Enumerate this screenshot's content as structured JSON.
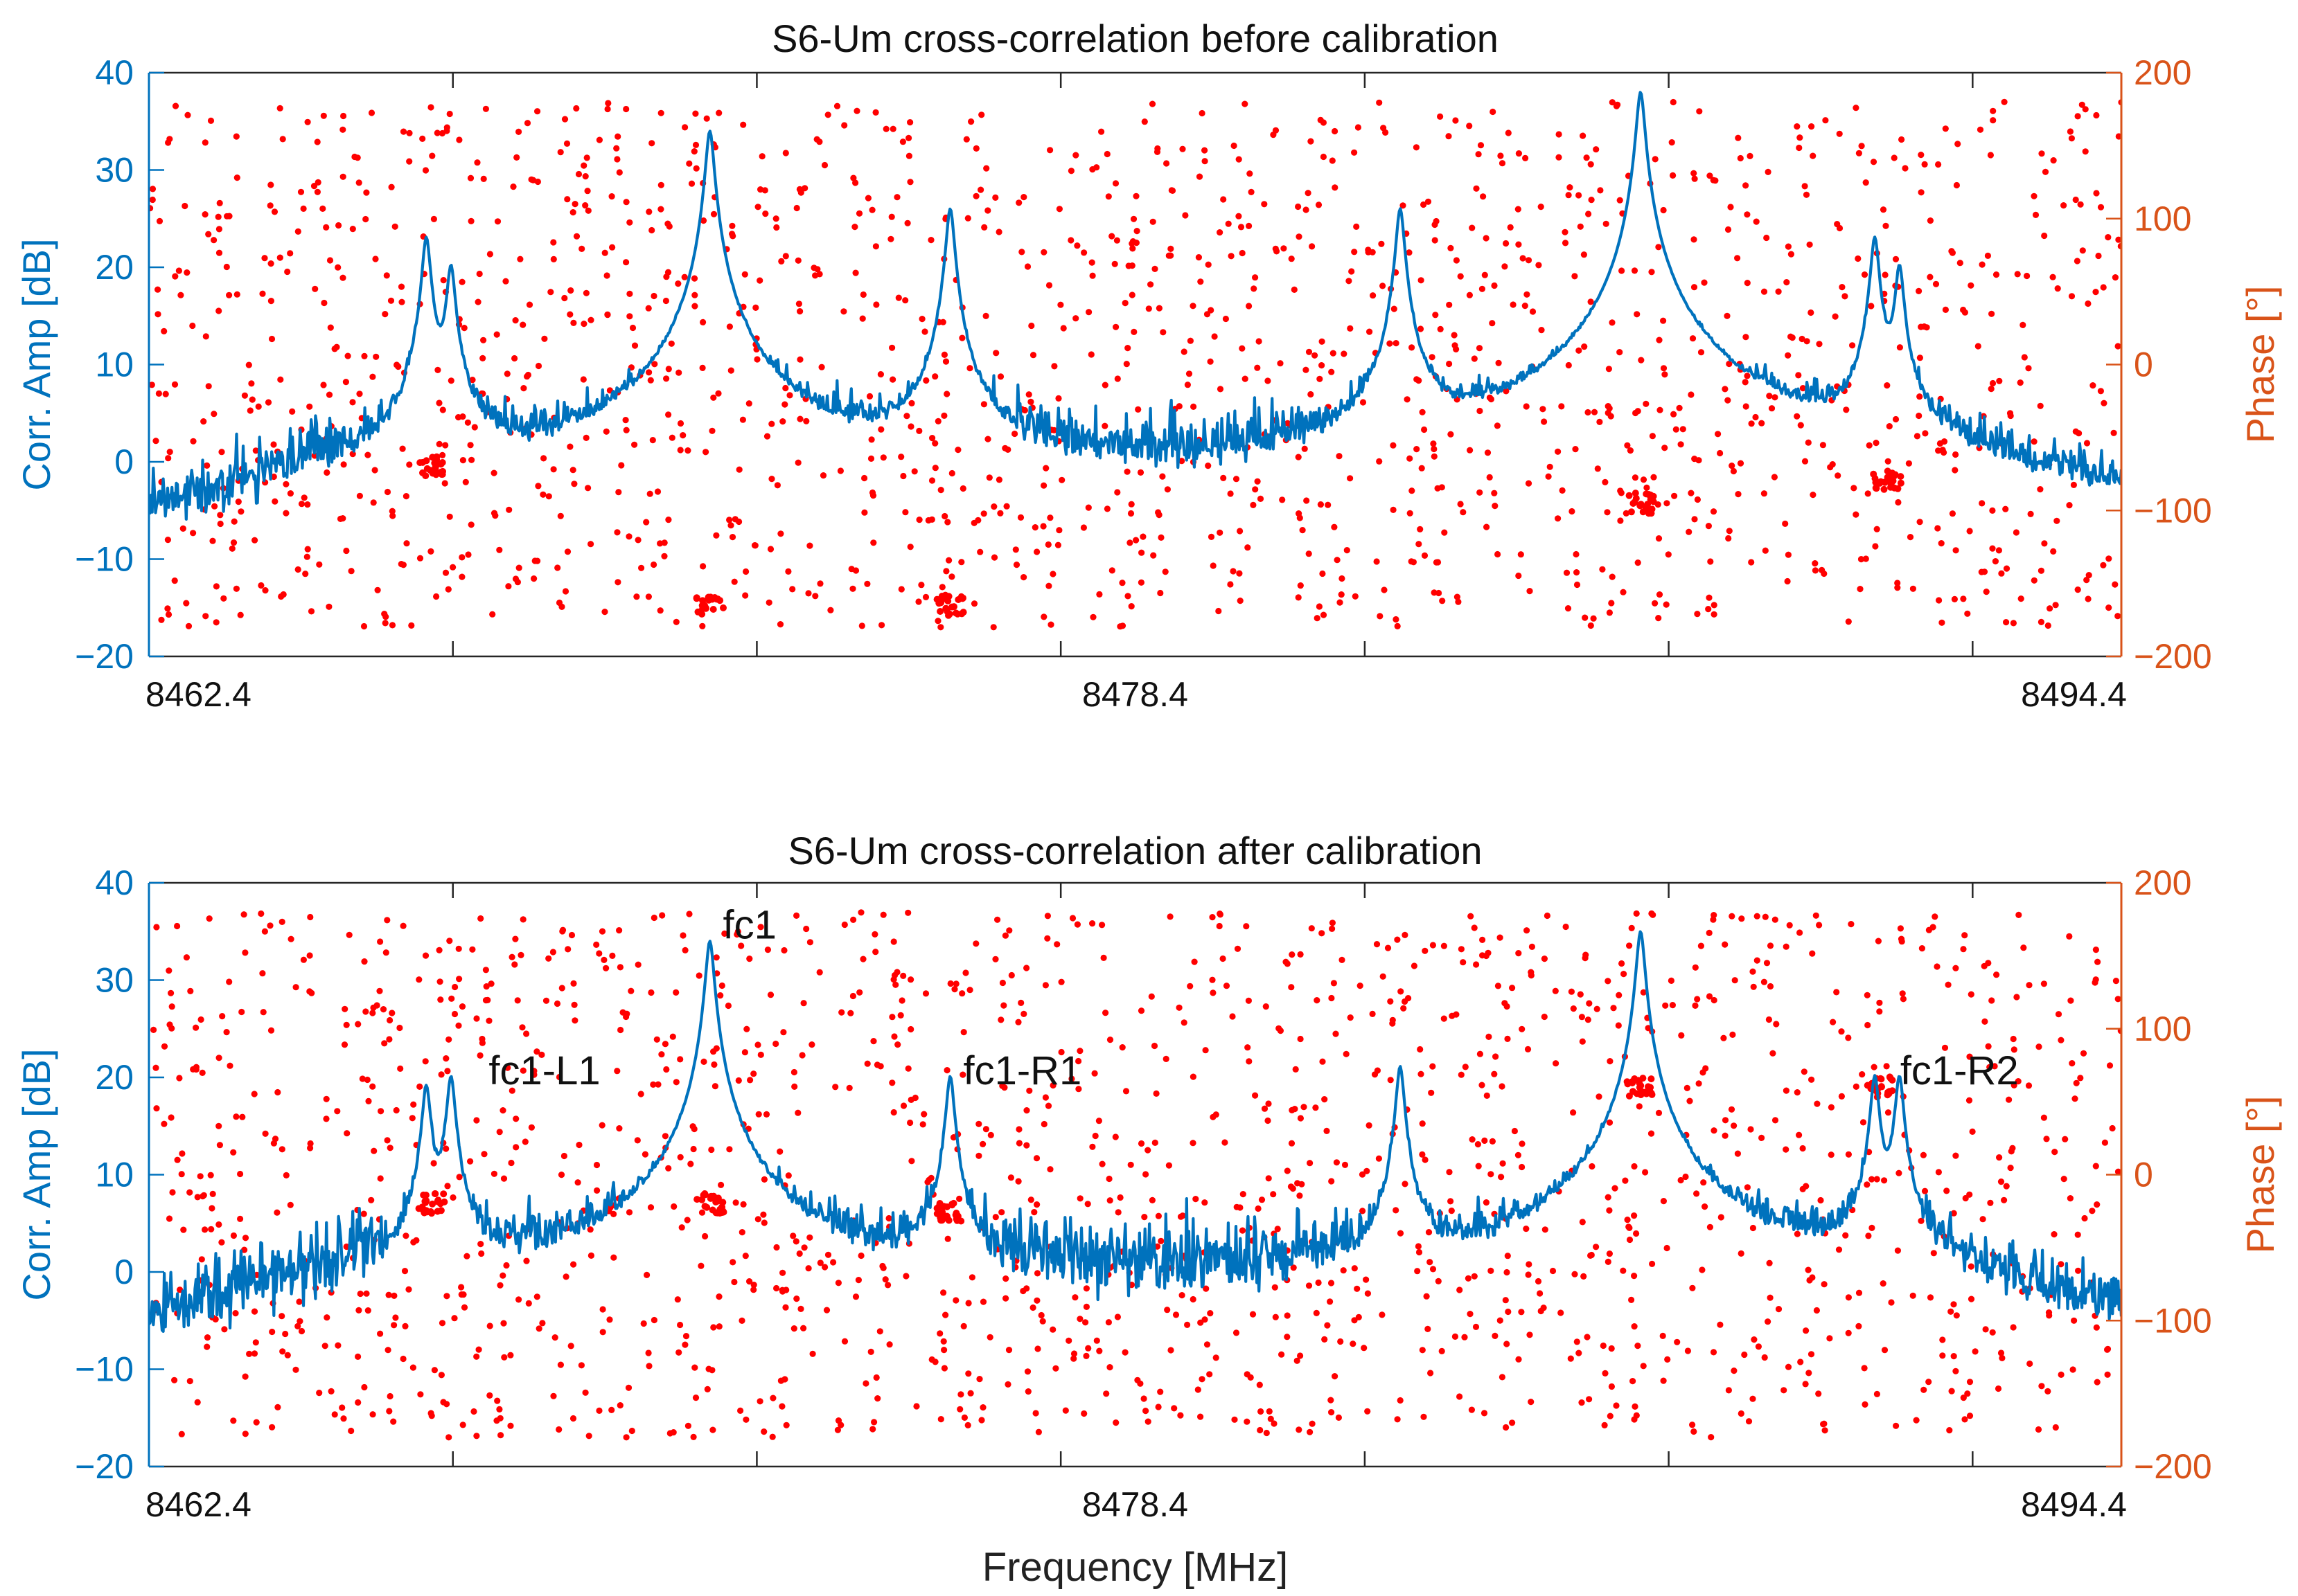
{
  "chart_data": [
    {
      "type": "line",
      "title": "S6-Um cross-correlation before calibration",
      "ylabel": "Corr. Amp [dB]",
      "y2label": "Phase [°]",
      "xlabel": "",
      "x_tick_labels": [
        "8462.4",
        "8478.4",
        "8494.4"
      ],
      "x_range": [
        8462.4,
        8494.4
      ],
      "ylim": [
        -20,
        40
      ],
      "y_ticks": [
        40,
        30,
        20,
        10,
        0,
        -10,
        -20
      ],
      "y2lim": [
        -200,
        200
      ],
      "y2_ticks": [
        200,
        100,
        0,
        -100,
        -200
      ],
      "colors": {
        "amplitude": "#0072BD",
        "phase": "#FF0000",
        "right_axis": "#D95319"
      },
      "series": [
        {
          "name": "Corr. Amp",
          "axis": "left",
          "baseline_db": -1,
          "noise_db": 6,
          "peaks": [
            {
              "freq": 8466.9,
              "db": 23
            },
            {
              "freq": 8467.3,
              "db": 20
            },
            {
              "freq": 8471.5,
              "db": 34
            },
            {
              "freq": 8475.4,
              "db": 26
            },
            {
              "freq": 8482.7,
              "db": 26
            },
            {
              "freq": 8486.6,
              "db": 38
            },
            {
              "freq": 8490.4,
              "db": 23
            },
            {
              "freq": 8490.8,
              "db": 20
            }
          ]
        },
        {
          "name": "Phase",
          "axis": "right",
          "type": "scatter",
          "clusters": [
            {
              "freq": 8467.0,
              "deg": -70
            },
            {
              "freq": 8471.5,
              "deg": -165
            },
            {
              "freq": 8475.4,
              "deg": -165
            },
            {
              "freq": 8486.6,
              "deg": -95
            },
            {
              "freq": 8490.6,
              "deg": -80
            }
          ]
        }
      ],
      "annotations": []
    },
    {
      "type": "line",
      "title": "S6-Um cross-correlation after calibration",
      "ylabel": "Corr. Amp [dB]",
      "y2label": "Phase [°]",
      "xlabel": "Frequency [MHz]",
      "x_tick_labels": [
        "8462.4",
        "8478.4",
        "8494.4"
      ],
      "x_range": [
        8462.4,
        8494.4
      ],
      "ylim": [
        -20,
        40
      ],
      "y_ticks": [
        40,
        30,
        20,
        10,
        0,
        -10,
        -20
      ],
      "y2lim": [
        -200,
        200
      ],
      "y2_ticks": [
        200,
        100,
        0,
        -100,
        -200
      ],
      "colors": {
        "amplitude": "#0072BD",
        "phase": "#FF0000",
        "right_axis": "#D95319"
      },
      "series": [
        {
          "name": "Corr. Amp",
          "axis": "left",
          "baseline_db": 0,
          "noise_db": 6,
          "peaks": [
            {
              "freq": 8466.9,
              "db": 19
            },
            {
              "freq": 8467.3,
              "db": 20
            },
            {
              "freq": 8471.5,
              "db": 34
            },
            {
              "freq": 8475.4,
              "db": 20
            },
            {
              "freq": 8482.7,
              "db": 21
            },
            {
              "freq": 8486.6,
              "db": 35
            },
            {
              "freq": 8490.4,
              "db": 20
            },
            {
              "freq": 8490.8,
              "db": 20
            }
          ]
        },
        {
          "name": "Phase",
          "axis": "right",
          "type": "scatter",
          "clusters": [
            {
              "freq": 8467.0,
              "deg": -20
            },
            {
              "freq": 8471.5,
              "deg": -20
            },
            {
              "freq": 8475.4,
              "deg": -25
            },
            {
              "freq": 8486.6,
              "deg": 60
            },
            {
              "freq": 8490.5,
              "deg": 60
            }
          ]
        }
      ],
      "annotations": [
        {
          "text": "fc1-L1",
          "freq": 8467.8,
          "db": 20
        },
        {
          "text": "fc1",
          "freq": 8471.6,
          "db": 35
        },
        {
          "text": "fc1-R1",
          "freq": 8475.5,
          "db": 20
        },
        {
          "text": "fc1-R2",
          "freq": 8490.7,
          "db": 20
        }
      ]
    }
  ]
}
